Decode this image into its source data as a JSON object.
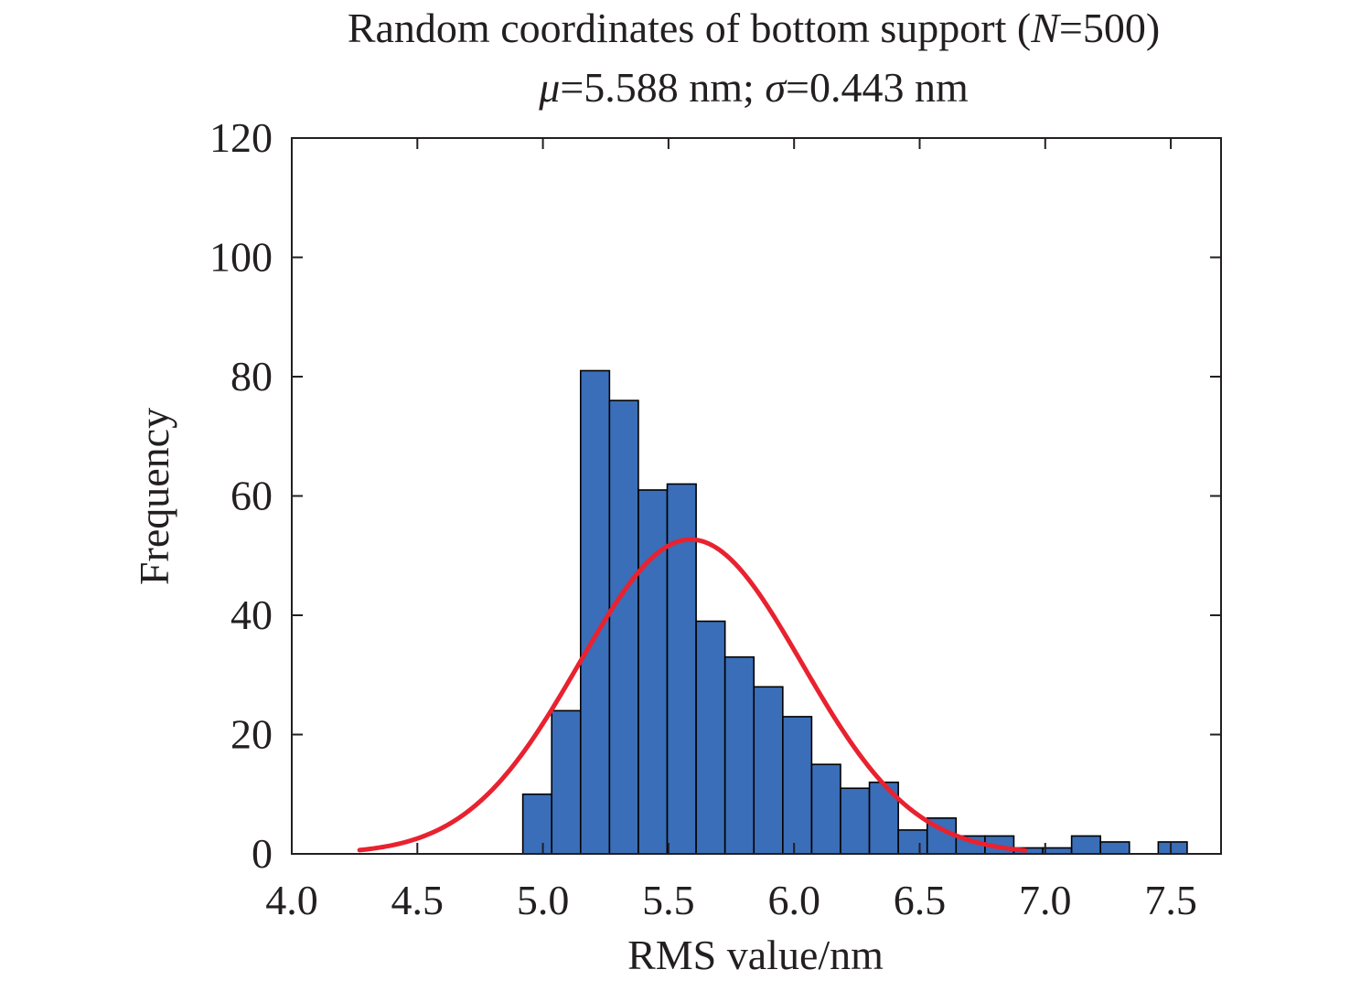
{
  "chart_data": {
    "type": "bar",
    "title_parts": [
      "Random coordinates of bottom support (",
      "N",
      "=500)"
    ],
    "subtitle_parts": [
      "μ",
      "=5.588 nm; ",
      "σ",
      "=0.443 nm"
    ],
    "xlabel": "RMS value/nm",
    "ylabel": "Frequency",
    "xlim": [
      4.0,
      7.7
    ],
    "ylim": [
      0,
      120
    ],
    "xticks": [
      4.0,
      4.5,
      5.0,
      5.5,
      6.0,
      6.5,
      7.0,
      7.5
    ],
    "xtick_labels": [
      "4.0",
      "4.5",
      "5.0",
      "5.5",
      "6.0",
      "6.5",
      "7.0",
      "7.5"
    ],
    "yticks": [
      0,
      20,
      40,
      60,
      80,
      100,
      120
    ],
    "ytick_labels": [
      "0",
      "20",
      "40",
      "60",
      "80",
      "100",
      "120"
    ],
    "bin_edges": [
      4.92,
      5.035,
      5.15,
      5.265,
      5.38,
      5.495,
      5.61,
      5.725,
      5.84,
      5.955,
      6.07,
      6.185,
      6.3,
      6.415,
      6.53,
      6.645,
      6.76,
      6.875,
      6.99,
      7.105,
      7.22,
      7.335,
      7.45,
      7.565
    ],
    "frequencies": [
      10,
      24,
      81,
      76,
      61,
      62,
      39,
      33,
      28,
      23,
      15,
      11,
      12,
      4,
      6,
      3,
      3,
      1,
      1,
      3,
      2,
      0,
      2
    ],
    "fit_curve": {
      "type": "normal",
      "mean": 5.588,
      "std": 0.443,
      "peak": 52.7,
      "x_range": [
        4.27,
        6.92
      ]
    },
    "grid": false,
    "colors": {
      "bar_fill": "#3a6eb8",
      "bar_edge": "#000000",
      "curve": "#e8222f",
      "axis": "#231f20"
    }
  }
}
